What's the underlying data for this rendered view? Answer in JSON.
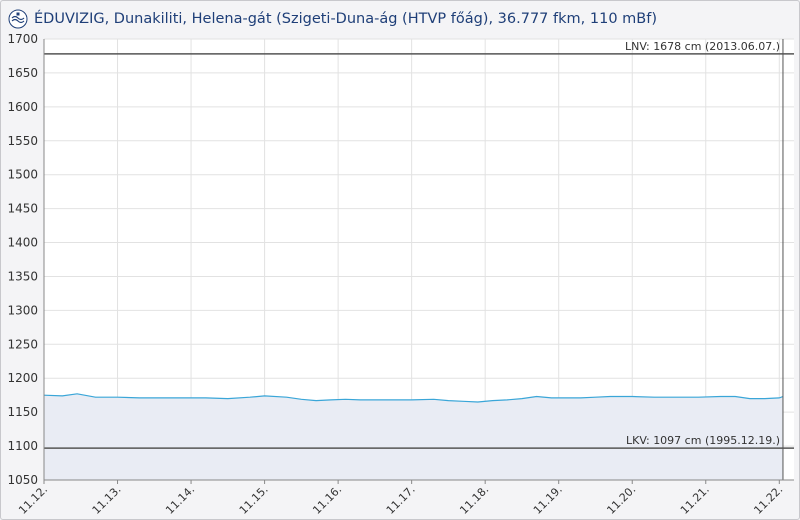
{
  "header": {
    "title": "ÉDUVIZIG, Dunakiliti, Helena-gát (Szigeti-Duna-ág (HTVP főág), 36.777 fkm, 110 mBf)",
    "logo_icon": "eduvizig-logo-icon"
  },
  "colors": {
    "line": "#3aa6d8",
    "area": "#e9ecf4",
    "reference": "#555555",
    "grid": "#e2e2e2",
    "title": "#1f3f78"
  },
  "chart_data": {
    "type": "area",
    "title": "",
    "xlabel": "",
    "ylabel": "",
    "ylim": [
      1050,
      1700
    ],
    "yticks": [
      1050,
      1100,
      1150,
      1200,
      1250,
      1300,
      1350,
      1400,
      1450,
      1500,
      1550,
      1600,
      1650,
      1700
    ],
    "xlim": [
      0,
      10.2
    ],
    "xtick_labels": [
      "11.12.",
      "11.13.",
      "11.14.",
      "11.15.",
      "11.16.",
      "11.17.",
      "11.18.",
      "11.19.",
      "11.20.",
      "11.21.",
      "11.22."
    ],
    "xtick_positions": [
      0,
      1,
      2,
      3,
      4,
      5,
      6,
      7,
      8,
      9,
      10
    ],
    "grid": true,
    "series": [
      {
        "x": [
          0,
          0.25,
          0.45,
          0.7,
          1.0,
          1.3,
          1.6,
          1.9,
          2.2,
          2.5,
          2.8,
          3.0,
          3.3,
          3.5,
          3.7,
          3.9,
          4.1,
          4.3,
          4.5,
          4.7,
          5.0,
          5.3,
          5.5,
          5.7,
          5.9,
          6.1,
          6.3,
          6.5,
          6.7,
          6.9,
          7.1,
          7.3,
          7.5,
          7.7,
          8.0,
          8.3,
          8.6,
          8.9,
          9.2,
          9.4,
          9.6,
          9.8,
          10.0,
          10.05
        ],
        "y": [
          1175,
          1174,
          1177,
          1172,
          1172,
          1171,
          1171,
          1171,
          1171,
          1170,
          1172,
          1174,
          1172,
          1169,
          1167,
          1168,
          1169,
          1168,
          1168,
          1168,
          1168,
          1169,
          1167,
          1166,
          1165,
          1167,
          1168,
          1170,
          1173,
          1171,
          1171,
          1171,
          1172,
          1173,
          1173,
          1172,
          1172,
          1172,
          1173,
          1173,
          1170,
          1170,
          1171,
          1173
        ]
      }
    ],
    "reference_lines": [
      {
        "name": "LNV",
        "value": 1678,
        "label": "LNV: 1678 cm (2013.06.07.)"
      },
      {
        "name": "LKV",
        "value": 1097,
        "label": "LKV: 1097 cm (1995.12.19.)"
      }
    ],
    "current_x": 10.05
  }
}
